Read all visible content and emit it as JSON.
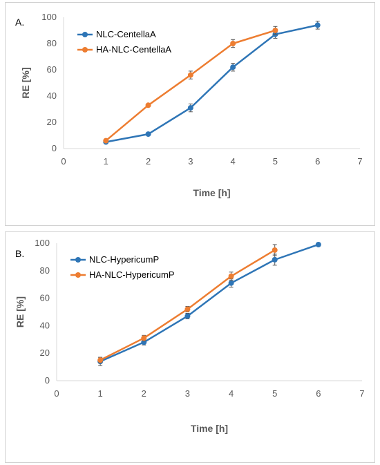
{
  "colors": {
    "blue": "#2E75B6",
    "orange": "#ED7D31",
    "axis": "#D9D9D9",
    "error": "#555555"
  },
  "chart_data": [
    {
      "type": "line",
      "panel_label": "A.",
      "xlabel": "Time [h]",
      "ylabel": "RE [%]",
      "xlim": [
        0,
        7
      ],
      "ylim": [
        0,
        100
      ],
      "xticks": [
        "0",
        "1",
        "2",
        "3",
        "4",
        "5",
        "6",
        "7"
      ],
      "yticks": [
        "0",
        "20",
        "40",
        "60",
        "80",
        "100"
      ],
      "legend": "top-left",
      "grid": false,
      "series": [
        {
          "name": "NLC-CentellaA",
          "color": "#2E75B6",
          "x": [
            1,
            2,
            3,
            4,
            5,
            6
          ],
          "y": [
            5,
            11,
            31,
            62,
            87,
            94
          ],
          "err": [
            1,
            1,
            3,
            3,
            3,
            3
          ]
        },
        {
          "name": "HA-NLC-CentellaA",
          "color": "#ED7D31",
          "x": [
            1,
            2,
            3,
            4,
            5
          ],
          "y": [
            6,
            33,
            56,
            80,
            90
          ],
          "err": [
            1,
            1,
            3,
            3,
            3
          ]
        }
      ]
    },
    {
      "type": "line",
      "panel_label": "B.",
      "xlabel": "Time [h]",
      "ylabel": "RE [%]",
      "xlim": [
        0,
        7
      ],
      "ylim": [
        0,
        100
      ],
      "xticks": [
        "0",
        "1",
        "2",
        "3",
        "4",
        "5",
        "6",
        "7"
      ],
      "yticks": [
        "0",
        "20",
        "40",
        "60",
        "80",
        "100"
      ],
      "legend": "top-left",
      "grid": false,
      "series": [
        {
          "name": "NLC-HypericumP",
          "color": "#2E75B6",
          "x": [
            1,
            2,
            3,
            4,
            5,
            6
          ],
          "y": [
            14,
            28,
            47,
            71,
            88,
            99
          ],
          "err": [
            3,
            2,
            2,
            3,
            4,
            1
          ]
        },
        {
          "name": "HA-NLC-HypericumP",
          "color": "#ED7D31",
          "x": [
            1,
            2,
            3,
            4,
            5
          ],
          "y": [
            15,
            31,
            52,
            76,
            95
          ],
          "err": [
            2,
            2,
            2,
            3,
            4
          ]
        }
      ]
    }
  ]
}
